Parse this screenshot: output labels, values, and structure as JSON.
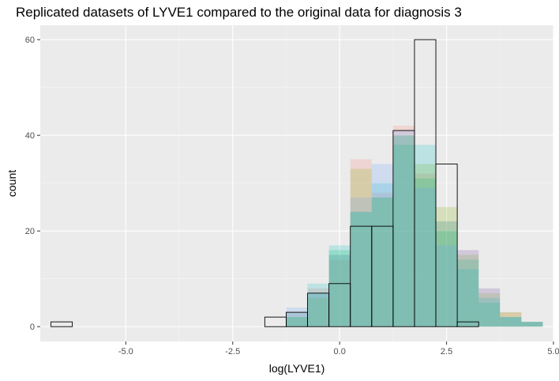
{
  "chart_data": {
    "type": "bar",
    "title": "Replicated datasets of LYVE1 compared to the original data for diagnosis 3",
    "xlabel": "log(LYVE1)",
    "ylabel": "count",
    "xlim": [
      -7.0,
      5.0
    ],
    "ylim": [
      -3.1,
      63.0
    ],
    "x_ticks": [
      -5.0,
      -2.5,
      0.0,
      2.5,
      5.0
    ],
    "x_tick_labels": [
      "-5.0",
      "-2.5",
      "0.0",
      "2.5",
      "5.0"
    ],
    "y_ticks": [
      0,
      20,
      40,
      60
    ],
    "y_tick_labels": [
      "0",
      "20",
      "40",
      "60"
    ],
    "bin_width": 0.5,
    "bin_centers": [
      -6.5,
      -6.0,
      -5.5,
      -5.0,
      -4.5,
      -4.0,
      -3.5,
      -3.0,
      -2.5,
      -2.0,
      -1.5,
      -1.0,
      -0.5,
      0.0,
      0.5,
      1.0,
      1.5,
      2.0,
      2.5,
      3.0,
      3.5,
      4.0,
      4.5
    ],
    "grid": true,
    "legend": "none",
    "series": [
      {
        "color": "#F8766D",
        "values": [
          0,
          0,
          0,
          0,
          0,
          0,
          0,
          0,
          0,
          0,
          0,
          3,
          8,
          14,
          35,
          28,
          42,
          32,
          22,
          16,
          8,
          3,
          1
        ]
      },
      {
        "color": "#7CAE00",
        "values": [
          0,
          0,
          0,
          0,
          0,
          0,
          0,
          0,
          0,
          0,
          0,
          2,
          6,
          15,
          33,
          27,
          40,
          34,
          25,
          15,
          7,
          3,
          1
        ]
      },
      {
        "color": "#00BFC4",
        "values": [
          0,
          0,
          0,
          0,
          0,
          0,
          0,
          0,
          0,
          0,
          0,
          3,
          9,
          17,
          24,
          30,
          40,
          38,
          22,
          12,
          6,
          2,
          1
        ]
      },
      {
        "color": "#00BE67",
        "values": [
          0,
          0,
          0,
          0,
          0,
          0,
          0,
          0,
          0,
          0,
          0,
          2,
          7,
          16,
          24,
          27,
          38,
          31,
          20,
          14,
          5,
          2,
          1
        ]
      },
      {
        "color": "#619CFF",
        "values": [
          0,
          0,
          0,
          0,
          0,
          0,
          0,
          0,
          0,
          0,
          0,
          4,
          7,
          15,
          27,
          34,
          41,
          29,
          17,
          16,
          8,
          2,
          1
        ]
      }
    ],
    "original": {
      "values": [
        1,
        0,
        0,
        0,
        0,
        0,
        0,
        0,
        0,
        0,
        2,
        3,
        7,
        9,
        21,
        21,
        41,
        60,
        34,
        1,
        0,
        0,
        0
      ]
    }
  }
}
